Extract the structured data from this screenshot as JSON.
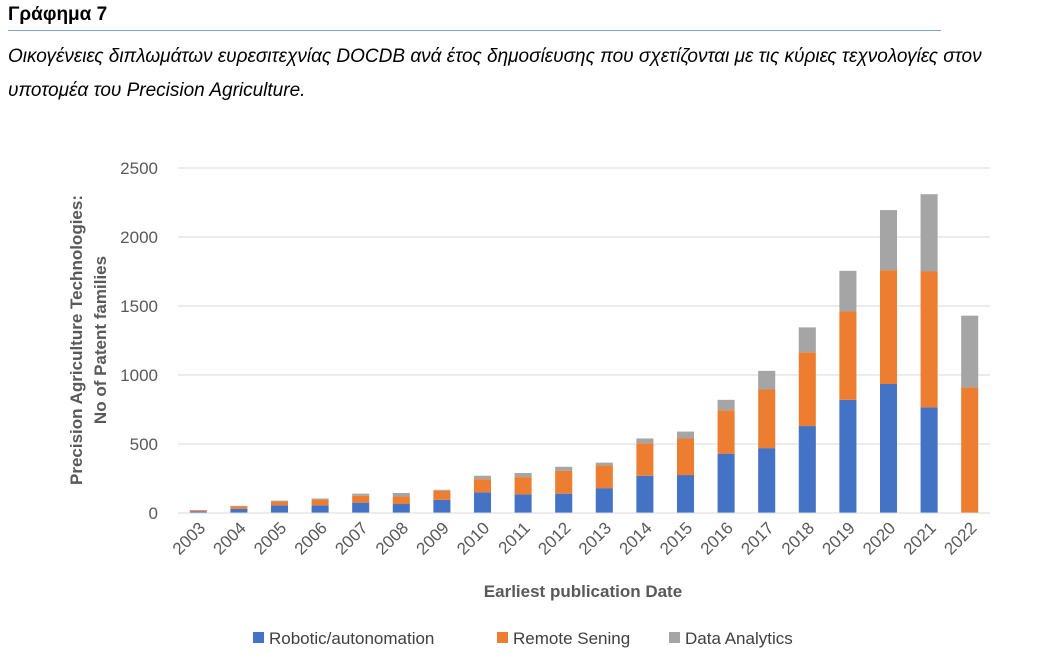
{
  "heading": "Γράφημα 7",
  "caption": "Οικογένειες διπλωμάτων ευρεσιτεχνίας DOCDB ανά έτος δημοσίευσης που σχετίζονται με τις κύριες τεχνολογίες στον υποτομέα του Precision Agriculture.",
  "chart_data": {
    "type": "bar",
    "stacked": true,
    "categories": [
      "2003",
      "2004",
      "2005",
      "2006",
      "2007",
      "2008",
      "2009",
      "2010",
      "2011",
      "2012",
      "2013",
      "2014",
      "2015",
      "2016",
      "2017",
      "2018",
      "2019",
      "2020",
      "2021",
      "2022"
    ],
    "series": [
      {
        "name": "Robotic/autonomation",
        "color": "#4472c4",
        "values": [
          12,
          30,
          55,
          55,
          75,
          65,
          95,
          150,
          135,
          140,
          180,
          270,
          275,
          430,
          470,
          630,
          820,
          935,
          765,
          0
        ]
      },
      {
        "name": "Remote Sening",
        "color": "#ed7d31",
        "values": [
          8,
          18,
          30,
          42,
          50,
          55,
          65,
          95,
          125,
          165,
          165,
          235,
          265,
          315,
          425,
          535,
          640,
          825,
          985,
          910
        ]
      },
      {
        "name": "Data Analytics",
        "color": "#a5a5a5",
        "values": [
          2,
          4,
          5,
          8,
          15,
          25,
          8,
          25,
          30,
          30,
          20,
          35,
          50,
          75,
          135,
          180,
          295,
          435,
          560,
          520
        ]
      }
    ],
    "xlabel": "Earliest publication Date",
    "ylabel_lines": [
      "Precision Agriculture Technologies:",
      "No of Patent families"
    ],
    "ylim": [
      0,
      2500
    ],
    "yticks": [
      "0",
      "500",
      "1000",
      "1500",
      "2000",
      "2500"
    ],
    "grid": true,
    "legend_position": "bottom"
  }
}
